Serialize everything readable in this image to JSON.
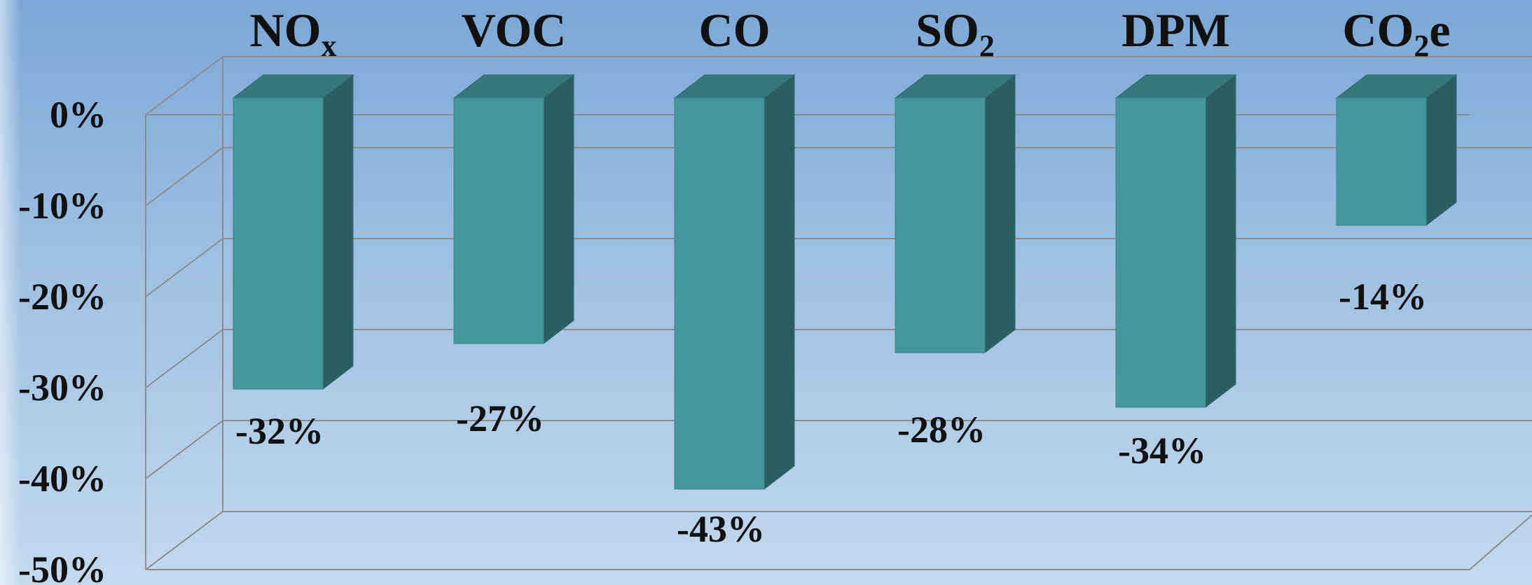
{
  "chart_data": {
    "type": "bar",
    "categories": [
      {
        "base": "NO",
        "sub": "x",
        "suffix": ""
      },
      {
        "base": "VOC",
        "sub": "",
        "suffix": ""
      },
      {
        "base": "CO",
        "sub": "",
        "suffix": ""
      },
      {
        "base": "SO",
        "sub": "2",
        "suffix": ""
      },
      {
        "base": "DPM",
        "sub": "",
        "suffix": ""
      },
      {
        "base": "CO",
        "sub": "2",
        "suffix": "e"
      }
    ],
    "values": [
      -32,
      -27,
      -43,
      -28,
      -34,
      -14
    ],
    "value_labels": [
      "-32%",
      "-27%",
      "-43%",
      "-28%",
      "-34%",
      "-14%"
    ],
    "y_ticks": [
      "0%",
      "-10%",
      "-20%",
      "-30%",
      "-40%",
      "-50%"
    ],
    "ylim": [
      -50,
      0
    ],
    "grid": true,
    "colors": {
      "bar_front": "#45979c",
      "bar_top": "#35777b",
      "bar_side": "#2b5e62",
      "gridline": "#8c8c8c"
    }
  }
}
